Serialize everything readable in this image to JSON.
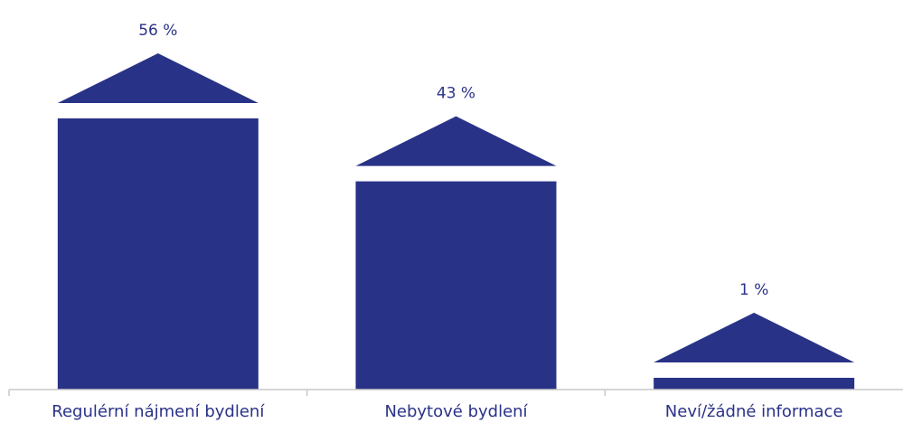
{
  "chart_data": {
    "type": "bar",
    "categories": [
      "Regulérní nájmení bydlení",
      "Nebytové bydlení",
      "Neví/žádné informace"
    ],
    "values": [
      56,
      43,
      1
    ],
    "value_labels": [
      "56 %",
      "43 %",
      "1 %"
    ],
    "title": "",
    "xlabel": "",
    "ylabel": "",
    "ylim": [
      0,
      56
    ],
    "grid": false,
    "legend": "none"
  },
  "colors": {
    "bar": "#283286",
    "axis": "#c8c8c8",
    "text": "#2a3288"
  }
}
